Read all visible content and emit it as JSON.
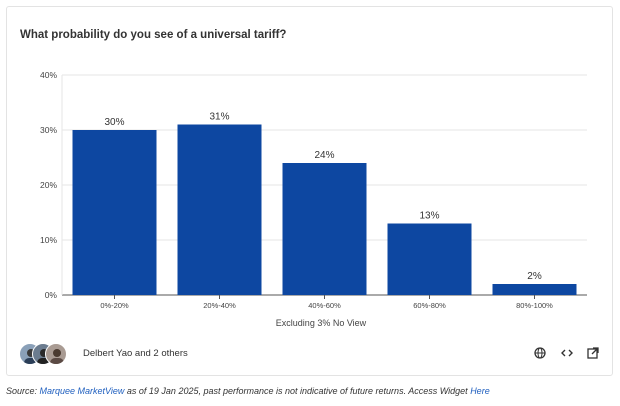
{
  "chart_data": {
    "type": "bar",
    "title": "What probability do you see of a universal tariff?",
    "xlabel": "Excluding 3% No View",
    "ylabel": "",
    "categories": [
      "0%-20%",
      "20%-40%",
      "40%-60%",
      "60%-80%",
      "80%-100%"
    ],
    "values": [
      30,
      31,
      24,
      13,
      2
    ],
    "data_labels": [
      "30%",
      "31%",
      "24%",
      "13%",
      "2%"
    ],
    "yticks": [
      0,
      10,
      20,
      30,
      40
    ],
    "ytick_labels": [
      "0%",
      "10%",
      "20%",
      "30%",
      "40%"
    ],
    "ylim": [
      0,
      40
    ],
    "grid": true,
    "bar_color": "#0d47a1"
  },
  "footer": {
    "author": "Delbert Yao and 2 others",
    "icons": [
      "globe-icon",
      "code-icon",
      "external-link-icon"
    ]
  },
  "source": {
    "prefix": "Source: ",
    "link1": "Marquee MarketView",
    "middle": " as of 19 Jan 2025, past performance is not indicative of future returns. Access Widget ",
    "link2": "Here"
  }
}
